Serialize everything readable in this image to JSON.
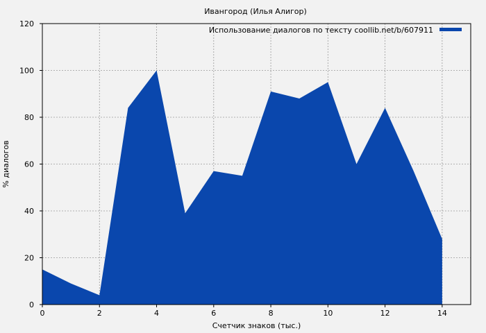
{
  "chart_data": {
    "type": "area",
    "title": "Ивангород (Илья Алигор)",
    "xlabel": "Счетчик знаков (тыс.)",
    "ylabel": "% диалогов",
    "xlim": [
      0,
      15
    ],
    "ylim": [
      0,
      120
    ],
    "x_ticks": [
      0,
      2,
      4,
      6,
      8,
      10,
      12,
      14
    ],
    "y_ticks": [
      0,
      20,
      40,
      60,
      80,
      100,
      120
    ],
    "grid": true,
    "legend_position": "top-right",
    "series": [
      {
        "name": "Использование диалогов по тексту coollib.net/b/607911",
        "color": "#0a47ad",
        "x": [
          0,
          1,
          2,
          3,
          4,
          5,
          6,
          7,
          8,
          9,
          10,
          11,
          12,
          13,
          14
        ],
        "values": [
          15,
          9,
          4,
          84,
          100,
          39,
          57,
          55,
          91,
          88,
          95,
          60,
          84,
          57,
          28
        ]
      }
    ]
  }
}
